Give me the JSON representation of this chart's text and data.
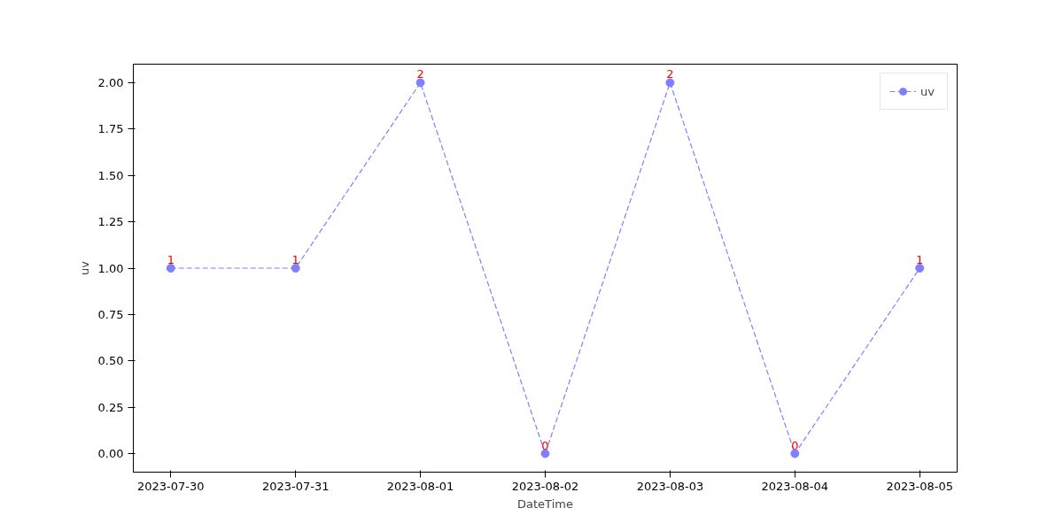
{
  "chart_data": {
    "type": "line",
    "xlabel": "DateTime",
    "ylabel": "uv",
    "categories": [
      "2023-07-30",
      "2023-07-31",
      "2023-08-01",
      "2023-08-02",
      "2023-08-03",
      "2023-08-04",
      "2023-08-05"
    ],
    "series": [
      {
        "name": "uv",
        "color": "#7f7fff",
        "values": [
          1,
          1,
          2,
          0,
          2,
          0,
          1
        ]
      }
    ],
    "ylim": [
      -0.1,
      2.1
    ],
    "yticks": [
      {
        "value": 0,
        "label": "0.00"
      },
      {
        "value": 0.25,
        "label": "0.25"
      },
      {
        "value": 0.5,
        "label": "0.50"
      },
      {
        "value": 0.75,
        "label": "0.75"
      },
      {
        "value": 1,
        "label": "1.00"
      },
      {
        "value": 1.25,
        "label": "1.25"
      },
      {
        "value": 1.5,
        "label": "1.50"
      },
      {
        "value": 1.75,
        "label": "1.75"
      },
      {
        "value": 2,
        "label": "2.00"
      }
    ],
    "marker": "circle",
    "line_style": "dashed",
    "data_labels": true,
    "grid": false,
    "legend": "top right"
  }
}
